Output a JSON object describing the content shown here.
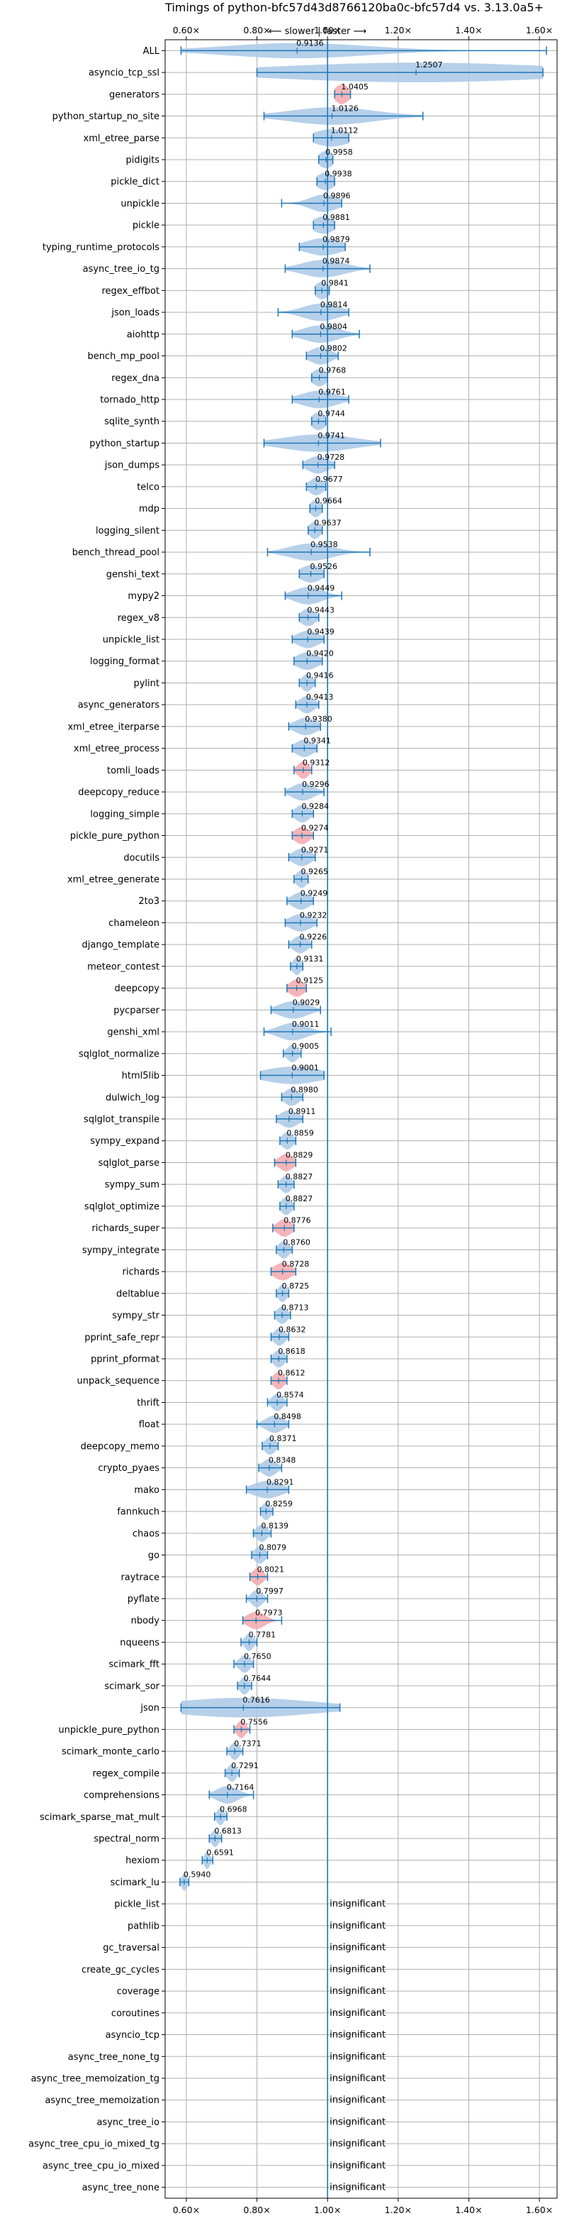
{
  "chart_data": {
    "type": "violin",
    "orientation": "horizontal",
    "title": "Timings of python-bfc57d43d8766120ba0c-bfc57d4 vs. 3.13.0a5+",
    "subtitle": "⟵ slower | faster ⟶",
    "xlim": [
      0.54,
      1.65
    ],
    "x_ticks": [
      {
        "value": 0.6,
        "label": "0.60×"
      },
      {
        "value": 0.8,
        "label": "0.80×"
      },
      {
        "value": 1.0,
        "label": "1.00×"
      },
      {
        "value": 1.2,
        "label": "1.20×"
      },
      {
        "value": 1.4,
        "label": "1.40×"
      },
      {
        "value": 1.6,
        "label": "1.60×"
      }
    ],
    "grid": true,
    "reference_line": 1.0,
    "colors": {
      "violin": "#a9c8e6",
      "violin_red": "#f2a8ad",
      "line": "#1f77b4",
      "grid": "#b0b0b0"
    },
    "insignificant_text": "insignificant",
    "benchmarks": [
      {
        "name": "ALL",
        "value": 0.9136,
        "label": "0.9136",
        "min": 0.585,
        "max": 1.62,
        "spread": 0.2,
        "height": 0.35,
        "red": false
      },
      {
        "name": "asyncio_tcp_ssl",
        "value": 1.2507,
        "label": "1.2507",
        "min": 0.8,
        "max": 1.61,
        "spread": 0.4,
        "height": 0.45,
        "red": false
      },
      {
        "name": "generators",
        "value": 1.0405,
        "label": "1.0405",
        "min": 1.02,
        "max": 1.065,
        "spread": 0.02,
        "height": 0.45,
        "red": true
      },
      {
        "name": "python_startup_no_site",
        "value": 1.0126,
        "label": "1.0126",
        "min": 0.82,
        "max": 1.27,
        "spread": 0.12,
        "height": 0.4,
        "red": false
      },
      {
        "name": "xml_etree_parse",
        "value": 1.0112,
        "label": "1.0112",
        "min": 0.96,
        "max": 1.06,
        "spread": 0.05,
        "height": 0.4,
        "red": false
      },
      {
        "name": "pidigits",
        "value": 0.9958,
        "label": "0.9958",
        "min": 0.975,
        "max": 1.015,
        "spread": 0.02,
        "height": 0.4,
        "red": false
      },
      {
        "name": "pickle_dict",
        "value": 0.9938,
        "label": "0.9938",
        "min": 0.97,
        "max": 1.02,
        "spread": 0.025,
        "height": 0.4,
        "red": false
      },
      {
        "name": "unpickle",
        "value": 0.9896,
        "label": "0.9896",
        "min": 0.87,
        "max": 1.04,
        "spread": 0.04,
        "height": 0.4,
        "red": false
      },
      {
        "name": "pickle",
        "value": 0.9881,
        "label": "0.9881",
        "min": 0.96,
        "max": 1.02,
        "spread": 0.03,
        "height": 0.4,
        "red": false
      },
      {
        "name": "typing_runtime_protocols",
        "value": 0.9879,
        "label": "0.9879",
        "min": 0.92,
        "max": 1.05,
        "spread": 0.05,
        "height": 0.4,
        "red": false
      },
      {
        "name": "async_tree_io_tg",
        "value": 0.9874,
        "label": "0.9874",
        "min": 0.88,
        "max": 1.12,
        "spread": 0.06,
        "height": 0.4,
        "red": false
      },
      {
        "name": "regex_effbot",
        "value": 0.9841,
        "label": "0.9841",
        "min": 0.965,
        "max": 1.005,
        "spread": 0.02,
        "height": 0.4,
        "red": false
      },
      {
        "name": "json_loads",
        "value": 0.9814,
        "label": "0.9814",
        "min": 0.86,
        "max": 1.06,
        "spread": 0.05,
        "height": 0.4,
        "red": false
      },
      {
        "name": "aiohttp",
        "value": 0.9804,
        "label": "0.9804",
        "min": 0.9,
        "max": 1.09,
        "spread": 0.05,
        "height": 0.4,
        "red": false
      },
      {
        "name": "bench_mp_pool",
        "value": 0.9802,
        "label": "0.9802",
        "min": 0.94,
        "max": 1.03,
        "spread": 0.03,
        "height": 0.4,
        "red": false
      },
      {
        "name": "regex_dna",
        "value": 0.9768,
        "label": "0.9768",
        "min": 0.955,
        "max": 1.0,
        "spread": 0.02,
        "height": 0.4,
        "red": false
      },
      {
        "name": "tornado_http",
        "value": 0.9761,
        "label": "0.9761",
        "min": 0.9,
        "max": 1.06,
        "spread": 0.05,
        "height": 0.4,
        "red": false
      },
      {
        "name": "sqlite_synth",
        "value": 0.9744,
        "label": "0.9744",
        "min": 0.955,
        "max": 0.995,
        "spread": 0.02,
        "height": 0.4,
        "red": false
      },
      {
        "name": "python_startup",
        "value": 0.9741,
        "label": "0.9741",
        "min": 0.82,
        "max": 1.15,
        "spread": 0.1,
        "height": 0.4,
        "red": false
      },
      {
        "name": "json_dumps",
        "value": 0.9728,
        "label": "0.9728",
        "min": 0.93,
        "max": 1.02,
        "spread": 0.03,
        "height": 0.4,
        "red": false
      },
      {
        "name": "telco",
        "value": 0.9677,
        "label": "0.9677",
        "min": 0.94,
        "max": 0.995,
        "spread": 0.02,
        "height": 0.4,
        "red": false
      },
      {
        "name": "mdp",
        "value": 0.9664,
        "label": "0.9664",
        "min": 0.95,
        "max": 0.985,
        "spread": 0.015,
        "height": 0.4,
        "red": false
      },
      {
        "name": "logging_silent",
        "value": 0.9637,
        "label": "0.9637",
        "min": 0.945,
        "max": 0.985,
        "spread": 0.015,
        "height": 0.4,
        "red": false
      },
      {
        "name": "bench_thread_pool",
        "value": 0.9538,
        "label": "0.9538",
        "min": 0.83,
        "max": 1.12,
        "spread": 0.06,
        "height": 0.4,
        "red": false
      },
      {
        "name": "genshi_text",
        "value": 0.9526,
        "label": "0.9526",
        "min": 0.92,
        "max": 0.99,
        "spread": 0.03,
        "height": 0.4,
        "red": false
      },
      {
        "name": "mypy2",
        "value": 0.9449,
        "label": "0.9449",
        "min": 0.88,
        "max": 1.04,
        "spread": 0.04,
        "height": 0.4,
        "red": false
      },
      {
        "name": "regex_v8",
        "value": 0.9443,
        "label": "0.9443",
        "min": 0.92,
        "max": 0.975,
        "spread": 0.02,
        "height": 0.4,
        "red": false
      },
      {
        "name": "unpickle_list",
        "value": 0.9439,
        "label": "0.9439",
        "min": 0.9,
        "max": 0.99,
        "spread": 0.03,
        "height": 0.4,
        "red": false
      },
      {
        "name": "logging_format",
        "value": 0.942,
        "label": "0.9420",
        "min": 0.905,
        "max": 0.985,
        "spread": 0.03,
        "height": 0.4,
        "red": false
      },
      {
        "name": "pylint",
        "value": 0.9416,
        "label": "0.9416",
        "min": 0.92,
        "max": 0.965,
        "spread": 0.015,
        "height": 0.4,
        "red": false
      },
      {
        "name": "async_generators",
        "value": 0.9413,
        "label": "0.9413",
        "min": 0.91,
        "max": 0.975,
        "spread": 0.02,
        "height": 0.4,
        "red": false
      },
      {
        "name": "xml_etree_iterparse",
        "value": 0.938,
        "label": "0.9380",
        "min": 0.89,
        "max": 0.98,
        "spread": 0.03,
        "height": 0.4,
        "red": false
      },
      {
        "name": "xml_etree_process",
        "value": 0.9341,
        "label": "0.9341",
        "min": 0.9,
        "max": 0.97,
        "spread": 0.025,
        "height": 0.4,
        "red": false
      },
      {
        "name": "tomli_loads",
        "value": 0.9312,
        "label": "0.9312",
        "min": 0.905,
        "max": 0.955,
        "spread": 0.015,
        "height": 0.4,
        "red": true
      },
      {
        "name": "deepcopy_reduce",
        "value": 0.9296,
        "label": "0.9296",
        "min": 0.88,
        "max": 0.99,
        "spread": 0.03,
        "height": 0.4,
        "red": false
      },
      {
        "name": "logging_simple",
        "value": 0.9284,
        "label": "0.9284",
        "min": 0.9,
        "max": 0.96,
        "spread": 0.02,
        "height": 0.4,
        "red": false
      },
      {
        "name": "pickle_pure_python",
        "value": 0.9274,
        "label": "0.9274",
        "min": 0.9,
        "max": 0.96,
        "spread": 0.02,
        "height": 0.4,
        "red": true
      },
      {
        "name": "docutils",
        "value": 0.9271,
        "label": "0.9271",
        "min": 0.89,
        "max": 0.965,
        "spread": 0.025,
        "height": 0.4,
        "red": false
      },
      {
        "name": "xml_etree_generate",
        "value": 0.9265,
        "label": "0.9265",
        "min": 0.905,
        "max": 0.945,
        "spread": 0.015,
        "height": 0.4,
        "red": false
      },
      {
        "name": "2to3",
        "value": 0.9249,
        "label": "0.9249",
        "min": 0.885,
        "max": 0.96,
        "spread": 0.025,
        "height": 0.4,
        "red": false
      },
      {
        "name": "chameleon",
        "value": 0.9232,
        "label": "0.9232",
        "min": 0.88,
        "max": 0.97,
        "spread": 0.03,
        "height": 0.4,
        "red": false
      },
      {
        "name": "django_template",
        "value": 0.9226,
        "label": "0.9226",
        "min": 0.89,
        "max": 0.955,
        "spread": 0.02,
        "height": 0.4,
        "red": false
      },
      {
        "name": "meteor_contest",
        "value": 0.9131,
        "label": "0.9131",
        "min": 0.895,
        "max": 0.93,
        "spread": 0.012,
        "height": 0.4,
        "red": false
      },
      {
        "name": "deepcopy",
        "value": 0.9125,
        "label": "0.9125",
        "min": 0.885,
        "max": 0.94,
        "spread": 0.02,
        "height": 0.4,
        "red": true
      },
      {
        "name": "pycparser",
        "value": 0.9029,
        "label": "0.9029",
        "min": 0.84,
        "max": 0.98,
        "spread": 0.04,
        "height": 0.4,
        "red": false
      },
      {
        "name": "genshi_xml",
        "value": 0.9011,
        "label": "0.9011",
        "min": 0.82,
        "max": 1.01,
        "spread": 0.04,
        "height": 0.4,
        "red": false
      },
      {
        "name": "sqlglot_normalize",
        "value": 0.9005,
        "label": "0.9005",
        "min": 0.875,
        "max": 0.925,
        "spread": 0.015,
        "height": 0.4,
        "red": false
      },
      {
        "name": "html5lib",
        "value": 0.9001,
        "label": "0.9001",
        "min": 0.81,
        "max": 0.99,
        "spread": 0.08,
        "height": 0.4,
        "red": false
      },
      {
        "name": "dulwich_log",
        "value": 0.898,
        "label": "0.8980",
        "min": 0.87,
        "max": 0.93,
        "spread": 0.02,
        "height": 0.4,
        "red": false
      },
      {
        "name": "sqlglot_transpile",
        "value": 0.8911,
        "label": "0.8911",
        "min": 0.855,
        "max": 0.93,
        "spread": 0.025,
        "height": 0.4,
        "red": false
      },
      {
        "name": "sympy_expand",
        "value": 0.8859,
        "label": "0.8859",
        "min": 0.865,
        "max": 0.91,
        "spread": 0.015,
        "height": 0.4,
        "red": false
      },
      {
        "name": "sqlglot_parse",
        "value": 0.8829,
        "label": "0.8829",
        "min": 0.85,
        "max": 0.91,
        "spread": 0.02,
        "height": 0.4,
        "red": true
      },
      {
        "name": "sympy_sum",
        "value": 0.8827,
        "label": "0.8827",
        "min": 0.86,
        "max": 0.905,
        "spread": 0.015,
        "height": 0.4,
        "red": false
      },
      {
        "name": "sqlglot_optimize",
        "value": 0.8827,
        "label": "0.8827",
        "min": 0.865,
        "max": 0.905,
        "spread": 0.015,
        "height": 0.4,
        "red": false
      },
      {
        "name": "richards_super",
        "value": 0.8776,
        "label": "0.8776",
        "min": 0.845,
        "max": 0.905,
        "spread": 0.02,
        "height": 0.4,
        "red": true
      },
      {
        "name": "sympy_integrate",
        "value": 0.876,
        "label": "0.8760",
        "min": 0.855,
        "max": 0.9,
        "spread": 0.015,
        "height": 0.4,
        "red": false
      },
      {
        "name": "richards",
        "value": 0.8728,
        "label": "0.8728",
        "min": 0.84,
        "max": 0.91,
        "spread": 0.025,
        "height": 0.4,
        "red": true
      },
      {
        "name": "deltablue",
        "value": 0.8725,
        "label": "0.8725",
        "min": 0.855,
        "max": 0.89,
        "spread": 0.012,
        "height": 0.4,
        "red": false
      },
      {
        "name": "sympy_str",
        "value": 0.8713,
        "label": "0.8713",
        "min": 0.85,
        "max": 0.895,
        "spread": 0.015,
        "height": 0.4,
        "red": false
      },
      {
        "name": "pprint_safe_repr",
        "value": 0.8632,
        "label": "0.8632",
        "min": 0.84,
        "max": 0.89,
        "spread": 0.015,
        "height": 0.4,
        "red": false
      },
      {
        "name": "pprint_pformat",
        "value": 0.8618,
        "label": "0.8618",
        "min": 0.84,
        "max": 0.885,
        "spread": 0.015,
        "height": 0.4,
        "red": false
      },
      {
        "name": "unpack_sequence",
        "value": 0.8612,
        "label": "0.8612",
        "min": 0.84,
        "max": 0.885,
        "spread": 0.015,
        "height": 0.4,
        "red": true
      },
      {
        "name": "thrift",
        "value": 0.8574,
        "label": "0.8574",
        "min": 0.83,
        "max": 0.885,
        "spread": 0.015,
        "height": 0.4,
        "red": false
      },
      {
        "name": "float",
        "value": 0.8498,
        "label": "0.8498",
        "min": 0.8,
        "max": 0.89,
        "spread": 0.025,
        "height": 0.4,
        "red": false
      },
      {
        "name": "deepcopy_memo",
        "value": 0.8371,
        "label": "0.8371",
        "min": 0.815,
        "max": 0.86,
        "spread": 0.015,
        "height": 0.4,
        "red": false
      },
      {
        "name": "crypto_pyaes",
        "value": 0.8348,
        "label": "0.8348",
        "min": 0.805,
        "max": 0.87,
        "spread": 0.02,
        "height": 0.4,
        "red": false
      },
      {
        "name": "mako",
        "value": 0.8291,
        "label": "0.8291",
        "min": 0.77,
        "max": 0.89,
        "spread": 0.04,
        "height": 0.4,
        "red": false
      },
      {
        "name": "fannkuch",
        "value": 0.8259,
        "label": "0.8259",
        "min": 0.81,
        "max": 0.845,
        "spread": 0.012,
        "height": 0.4,
        "red": false
      },
      {
        "name": "chaos",
        "value": 0.8139,
        "label": "0.8139",
        "min": 0.79,
        "max": 0.84,
        "spread": 0.015,
        "height": 0.4,
        "red": false
      },
      {
        "name": "go",
        "value": 0.8079,
        "label": "0.8079",
        "min": 0.785,
        "max": 0.83,
        "spread": 0.015,
        "height": 0.4,
        "red": false
      },
      {
        "name": "raytrace",
        "value": 0.8021,
        "label": "0.8021",
        "min": 0.78,
        "max": 0.83,
        "spread": 0.015,
        "height": 0.4,
        "red": true
      },
      {
        "name": "pyflate",
        "value": 0.7997,
        "label": "0.7997",
        "min": 0.77,
        "max": 0.83,
        "spread": 0.015,
        "height": 0.4,
        "red": false
      },
      {
        "name": "nbody",
        "value": 0.7973,
        "label": "0.7973",
        "min": 0.76,
        "max": 0.87,
        "spread": 0.025,
        "height": 0.4,
        "red": true
      },
      {
        "name": "nqueens",
        "value": 0.7781,
        "label": "0.7781",
        "min": 0.755,
        "max": 0.8,
        "spread": 0.012,
        "height": 0.4,
        "red": false
      },
      {
        "name": "scimark_fft",
        "value": 0.765,
        "label": "0.7650",
        "min": 0.735,
        "max": 0.79,
        "spread": 0.015,
        "height": 0.4,
        "red": false
      },
      {
        "name": "scimark_sor",
        "value": 0.7644,
        "label": "0.7644",
        "min": 0.745,
        "max": 0.785,
        "spread": 0.012,
        "height": 0.4,
        "red": false
      },
      {
        "name": "json",
        "value": 0.7616,
        "label": "0.7616",
        "min": 0.585,
        "max": 1.035,
        "spread": 0.2,
        "height": 0.45,
        "red": false
      },
      {
        "name": "unpickle_pure_python",
        "value": 0.7556,
        "label": "0.7556",
        "min": 0.735,
        "max": 0.78,
        "spread": 0.012,
        "height": 0.4,
        "red": true
      },
      {
        "name": "scimark_monte_carlo",
        "value": 0.7371,
        "label": "0.7371",
        "min": 0.715,
        "max": 0.76,
        "spread": 0.012,
        "height": 0.4,
        "red": false
      },
      {
        "name": "regex_compile",
        "value": 0.7291,
        "label": "0.7291",
        "min": 0.71,
        "max": 0.75,
        "spread": 0.012,
        "height": 0.4,
        "red": false
      },
      {
        "name": "comprehensions",
        "value": 0.7164,
        "label": "0.7164",
        "min": 0.665,
        "max": 0.79,
        "spread": 0.03,
        "height": 0.4,
        "red": false
      },
      {
        "name": "scimark_sparse_mat_mult",
        "value": 0.6968,
        "label": "0.6968",
        "min": 0.68,
        "max": 0.715,
        "spread": 0.01,
        "height": 0.4,
        "red": false
      },
      {
        "name": "spectral_norm",
        "value": 0.6813,
        "label": "0.6813",
        "min": 0.665,
        "max": 0.7,
        "spread": 0.01,
        "height": 0.4,
        "red": false
      },
      {
        "name": "hexiom",
        "value": 0.6591,
        "label": "0.6591",
        "min": 0.645,
        "max": 0.675,
        "spread": 0.008,
        "height": 0.4,
        "red": false
      },
      {
        "name": "scimark_lu",
        "value": 0.594,
        "label": "0.5940",
        "min": 0.582,
        "max": 0.607,
        "spread": 0.007,
        "height": 0.4,
        "red": false
      },
      {
        "name": "pickle_list",
        "insignificant": true
      },
      {
        "name": "pathlib",
        "insignificant": true
      },
      {
        "name": "gc_traversal",
        "insignificant": true
      },
      {
        "name": "create_gc_cycles",
        "insignificant": true
      },
      {
        "name": "coverage",
        "insignificant": true
      },
      {
        "name": "coroutines",
        "insignificant": true
      },
      {
        "name": "asyncio_tcp",
        "insignificant": true
      },
      {
        "name": "async_tree_none_tg",
        "insignificant": true
      },
      {
        "name": "async_tree_memoization_tg",
        "insignificant": true
      },
      {
        "name": "async_tree_memoization",
        "insignificant": true
      },
      {
        "name": "async_tree_io",
        "insignificant": true
      },
      {
        "name": "async_tree_cpu_io_mixed_tg",
        "insignificant": true
      },
      {
        "name": "async_tree_cpu_io_mixed",
        "insignificant": true
      },
      {
        "name": "async_tree_none",
        "insignificant": true
      }
    ]
  }
}
